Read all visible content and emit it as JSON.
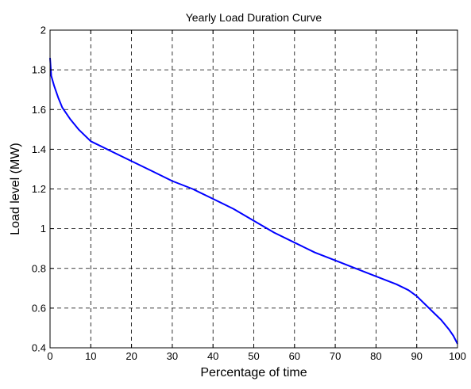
{
  "chart_data": {
    "type": "line",
    "title": "Yearly Load Duration Curve",
    "xlabel": "Percentage of time",
    "ylabel": "Load level (MW)",
    "xlim": [
      0,
      100
    ],
    "ylim": [
      0.4,
      2
    ],
    "xticks": [
      0,
      10,
      20,
      30,
      40,
      50,
      60,
      70,
      80,
      90,
      100
    ],
    "xtick_labels": [
      "0",
      "10",
      "20",
      "30",
      "40",
      "50",
      "60",
      "70",
      "80",
      "90",
      "100"
    ],
    "yticks": [
      0.4,
      0.6,
      0.8,
      1,
      1.2,
      1.4,
      1.6,
      1.8,
      2
    ],
    "ytick_labels": [
      "0.4",
      "0.6",
      "0.8",
      "1",
      "1.2",
      "1.4",
      "1.6",
      "1.8",
      "2"
    ],
    "grid": true,
    "grid_style": "dashed",
    "series": [
      {
        "color": "#0000ff",
        "x": [
          0,
          0.3,
          1,
          2,
          3,
          5,
          7,
          10,
          15,
          20,
          25,
          30,
          35,
          40,
          45,
          50,
          55,
          60,
          65,
          70,
          75,
          80,
          85,
          88,
          90,
          92,
          94,
          96,
          98,
          99,
          100
        ],
        "y": [
          1.86,
          1.77,
          1.72,
          1.66,
          1.61,
          1.55,
          1.5,
          1.44,
          1.39,
          1.34,
          1.29,
          1.24,
          1.2,
          1.15,
          1.1,
          1.04,
          0.98,
          0.93,
          0.88,
          0.84,
          0.8,
          0.76,
          0.72,
          0.69,
          0.66,
          0.62,
          0.58,
          0.54,
          0.49,
          0.46,
          0.42
        ]
      }
    ]
  }
}
